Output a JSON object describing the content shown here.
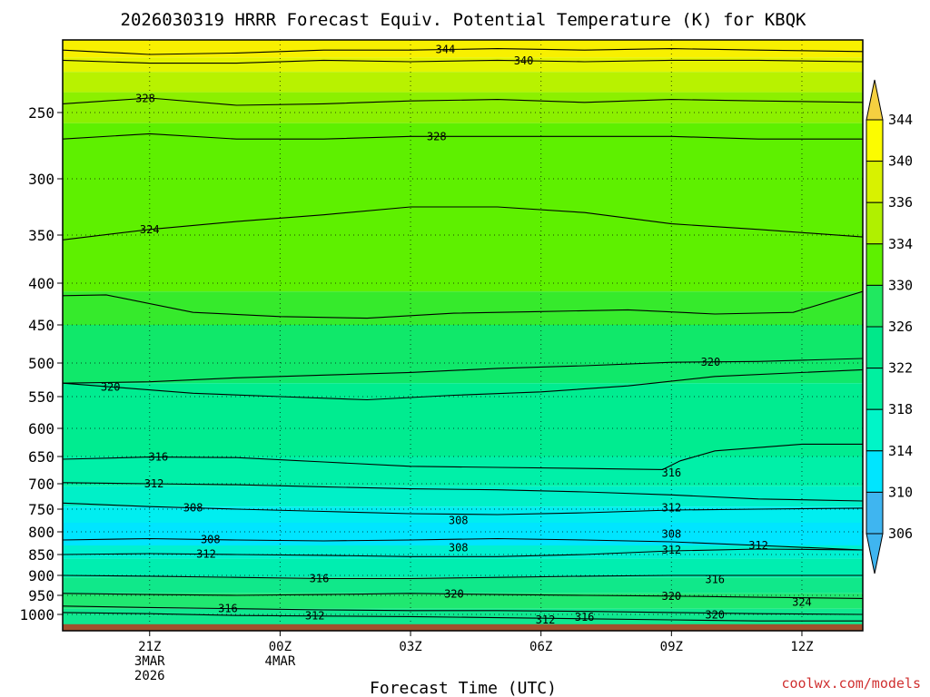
{
  "page": {
    "title": "2026030319 HRRR Forecast Equiv. Potential Temperature (K) for KBQK",
    "credit": "coolwx.com/models"
  },
  "chart_data": {
    "type": "heatmap",
    "title": "2026030319 HRRR Forecast Equiv. Potential Temperature (K) for KBQK",
    "xlabel": "Forecast Time (UTC)",
    "ylabel": "",
    "xlim": [
      19,
      37.4
    ],
    "ylim": [
      1030,
      200
    ],
    "yticks": [
      250,
      300,
      350,
      400,
      450,
      500,
      550,
      600,
      650,
      700,
      750,
      800,
      850,
      900,
      950,
      1000
    ],
    "xticks": [
      {
        "x": 21,
        "lines": [
          "21Z",
          "3MAR",
          "2026"
        ]
      },
      {
        "x": 24,
        "lines": [
          "00Z",
          "4MAR"
        ]
      },
      {
        "x": 27,
        "lines": [
          "03Z"
        ]
      },
      {
        "x": 30,
        "lines": [
          "06Z"
        ]
      },
      {
        "x": 33,
        "lines": [
          "09Z"
        ]
      },
      {
        "x": 36,
        "lines": [
          "12Z"
        ]
      }
    ],
    "colorbar": {
      "levels": [
        306,
        310,
        314,
        318,
        322,
        326,
        330,
        334,
        336,
        340,
        344
      ],
      "colors": [
        "#3fb5f0",
        "#00e5ff",
        "#00f5c8",
        "#00f0a0",
        "#00e88a",
        "#20e860",
        "#5ef000",
        "#b0f000",
        "#d8f200",
        "#fcfc00",
        "#f5d040"
      ]
    },
    "contours": [
      {
        "label": "344",
        "at": [
          [
            19,
            207
          ],
          [
            21,
            210
          ],
          [
            23,
            209
          ],
          [
            25,
            207
          ],
          [
            27,
            207
          ],
          [
            29,
            206
          ],
          [
            31,
            207
          ],
          [
            33,
            206
          ],
          [
            35,
            207
          ],
          [
            37.4,
            208
          ]
        ],
        "label_x": 27.8
      },
      {
        "label": "340",
        "at": [
          [
            19,
            214
          ],
          [
            21,
            216
          ],
          [
            23,
            216
          ],
          [
            25,
            214
          ],
          [
            27,
            215
          ],
          [
            29,
            214
          ],
          [
            31,
            215
          ],
          [
            33,
            214
          ],
          [
            35,
            214
          ],
          [
            37.4,
            215
          ]
        ],
        "label_x": 29.6
      },
      {
        "label": "328",
        "at": [
          [
            19,
            244
          ],
          [
            21,
            240
          ],
          [
            23,
            245
          ],
          [
            25,
            244
          ],
          [
            27,
            242
          ],
          [
            29,
            241
          ],
          [
            31,
            243
          ],
          [
            33,
            241
          ],
          [
            35,
            242
          ],
          [
            37.4,
            243
          ]
        ],
        "label_x": 20.9
      },
      {
        "label": "328",
        "at": [
          [
            19,
            270
          ],
          [
            21,
            266
          ],
          [
            23,
            270
          ],
          [
            25,
            270
          ],
          [
            27,
            268
          ],
          [
            29,
            268
          ],
          [
            31,
            268
          ],
          [
            33,
            268
          ],
          [
            35,
            270
          ],
          [
            37.4,
            270
          ]
        ],
        "label_x": 27.6
      },
      {
        "label": "324",
        "at": [
          [
            19,
            355
          ],
          [
            21,
            345
          ],
          [
            23,
            338
          ],
          [
            25,
            332
          ],
          [
            27,
            325
          ],
          [
            29,
            325
          ],
          [
            31,
            330
          ],
          [
            33,
            340
          ],
          [
            35,
            345
          ],
          [
            37.4,
            352
          ]
        ],
        "label_x": 21.0
      },
      {
        "label": "",
        "at": [
          [
            19,
            415
          ],
          [
            20,
            414
          ],
          [
            22,
            435
          ],
          [
            24,
            440
          ],
          [
            26,
            442
          ],
          [
            28,
            436
          ],
          [
            30,
            434
          ],
          [
            32,
            432
          ],
          [
            34,
            437
          ],
          [
            35.8,
            435
          ],
          [
            37.4,
            410
          ]
        ],
        "label_x": 0
      },
      {
        "label": "320",
        "at": [
          [
            19,
            530
          ],
          [
            21,
            528
          ],
          [
            23,
            522
          ],
          [
            25,
            518
          ],
          [
            27,
            514
          ],
          [
            29,
            508
          ],
          [
            31,
            504
          ],
          [
            33,
            499
          ],
          [
            35,
            498
          ],
          [
            37.4,
            494
          ]
        ],
        "label_x": 33.9
      },
      {
        "label": "320",
        "at": [
          [
            19,
            530
          ],
          [
            20,
            535
          ],
          [
            22,
            545
          ],
          [
            24,
            550
          ],
          [
            26,
            555
          ],
          [
            28,
            548
          ],
          [
            30,
            543
          ],
          [
            32,
            534
          ],
          [
            34,
            520
          ],
          [
            37.4,
            510
          ]
        ],
        "label_x": 20.1
      },
      {
        "label": "316",
        "at": [
          [
            19,
            655
          ],
          [
            21,
            651
          ],
          [
            23,
            652
          ],
          [
            25,
            660
          ],
          [
            27,
            668
          ],
          [
            29,
            670
          ],
          [
            31,
            672
          ],
          [
            32.8,
            674
          ],
          [
            33.2,
            658
          ],
          [
            34,
            640
          ],
          [
            36,
            628
          ],
          [
            37.4,
            628
          ]
        ],
        "label_x": 21.2
      },
      {
        "label": "312",
        "at": [
          [
            19,
            698
          ],
          [
            21,
            700
          ],
          [
            23,
            702
          ],
          [
            25,
            706
          ],
          [
            27,
            710
          ],
          [
            29,
            712
          ],
          [
            31,
            716
          ],
          [
            33,
            722
          ],
          [
            35,
            730
          ],
          [
            37.4,
            734
          ]
        ],
        "label_x": 21.1
      },
      {
        "label": "308",
        "at": [
          [
            19,
            738
          ],
          [
            21,
            745
          ],
          [
            23,
            750
          ],
          [
            25,
            755
          ],
          [
            27,
            760
          ],
          [
            29,
            762
          ],
          [
            31,
            758
          ],
          [
            33,
            752
          ],
          [
            35,
            750
          ],
          [
            37.4,
            748
          ]
        ],
        "label_x": 22.0
      },
      {
        "label": "308",
        "at": [
          [
            19,
            818
          ],
          [
            21,
            815
          ],
          [
            23,
            818
          ],
          [
            25,
            820
          ],
          [
            27,
            818
          ],
          [
            29,
            815
          ],
          [
            31,
            818
          ],
          [
            33,
            822
          ],
          [
            35,
            830
          ],
          [
            37.4,
            840
          ]
        ],
        "label_x": 22.4
      },
      {
        "label": "312",
        "at": [
          [
            19,
            850
          ],
          [
            21,
            848
          ],
          [
            23,
            850
          ],
          [
            25,
            852
          ],
          [
            27,
            855
          ],
          [
            29,
            855
          ],
          [
            31,
            850
          ],
          [
            33,
            842
          ],
          [
            35,
            838
          ],
          [
            37.4,
            840
          ]
        ],
        "label_x": 22.3
      },
      {
        "label": "316",
        "at": [
          [
            19,
            900
          ],
          [
            21,
            902
          ],
          [
            23,
            905
          ],
          [
            25,
            908
          ],
          [
            27,
            908
          ],
          [
            29,
            905
          ],
          [
            31,
            902
          ],
          [
            33,
            900
          ],
          [
            35,
            900
          ],
          [
            37.4,
            900
          ]
        ],
        "label_x": 24.9
      },
      {
        "label": "320",
        "at": [
          [
            19,
            945
          ],
          [
            21,
            948
          ],
          [
            23,
            950
          ],
          [
            25,
            948
          ],
          [
            27,
            945
          ],
          [
            29,
            948
          ],
          [
            31,
            950
          ],
          [
            33,
            952
          ],
          [
            35,
            955
          ],
          [
            37.4,
            958
          ]
        ],
        "label_x": 28.0
      },
      {
        "label": "316",
        "at": [
          [
            19,
            978
          ],
          [
            21,
            982
          ],
          [
            23,
            985
          ],
          [
            25,
            988
          ],
          [
            27,
            990
          ],
          [
            29,
            990
          ],
          [
            31,
            992
          ],
          [
            33,
            995
          ],
          [
            35,
            998
          ],
          [
            37.4,
            1000
          ]
        ],
        "label_x": 22.8
      },
      {
        "label": "312",
        "at": [
          [
            19,
            995
          ],
          [
            21,
            998
          ],
          [
            23,
            1002
          ],
          [
            25,
            1003
          ],
          [
            27,
            1004
          ],
          [
            29,
            1006
          ],
          [
            31,
            1008
          ],
          [
            33,
            1010
          ],
          [
            35,
            1012
          ],
          [
            37.4,
            1012
          ]
        ],
        "label_x": 24.8
      }
    ],
    "extra_labels": [
      {
        "text": "308",
        "x": 28.1,
        "p": 775
      },
      {
        "text": "308",
        "x": 28.1,
        "p": 835
      },
      {
        "text": "312",
        "x": 33.0,
        "p": 747
      },
      {
        "text": "308",
        "x": 33.0,
        "p": 805
      },
      {
        "text": "312",
        "x": 33.0,
        "p": 840
      },
      {
        "text": "312",
        "x": 35.0,
        "p": 830
      },
      {
        "text": "316",
        "x": 33.0,
        "p": 680
      },
      {
        "text": "316",
        "x": 34.0,
        "p": 910
      },
      {
        "text": "320",
        "x": 33.0,
        "p": 952
      },
      {
        "text": "324",
        "x": 36.0,
        "p": 968
      },
      {
        "text": "312",
        "x": 30.1,
        "p": 1010
      },
      {
        "text": "316",
        "x": 31.0,
        "p": 1005
      },
      {
        "text": "320",
        "x": 34.0,
        "p": 1001
      }
    ],
    "ground_pressure": 1018
  }
}
